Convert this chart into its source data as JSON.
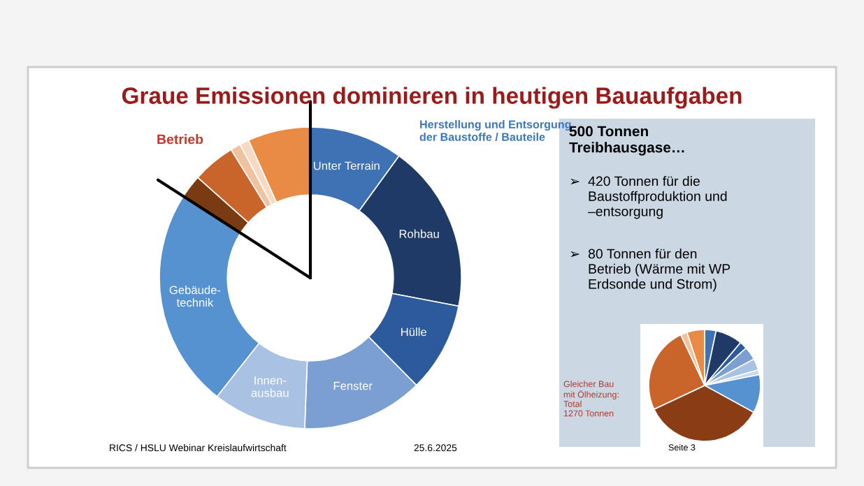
{
  "chart_data": [
    {
      "type": "donut",
      "title": "Graue Emissionen dominieren in heutigen Bauaufgaben",
      "categories": [
        "Unter Terrain",
        "Rohbau",
        "Hülle",
        "Fenster",
        "Innen-\nausbau",
        "Gebäude-\ntechnik",
        null,
        null,
        null,
        null,
        null
      ],
      "values": [
        10,
        18,
        9.6,
        13,
        10,
        23.5,
        2.5,
        4.6,
        1.1,
        1,
        6.7
      ],
      "colors": [
        "#3f72b5",
        "#1f3a66",
        "#2d5a9c",
        "#7a9fd0",
        "#a9c1e2",
        "#5592cf",
        "#7a3a12",
        "#c9642a",
        "#f0c3a0",
        "#f7d9c4",
        "#e98a45"
      ],
      "annotations": [
        "Betrieb",
        "Herstellung und Entsorgung\nder Baustoffe / Bauteile",
        "500 Tonnen\nTreibhausgase…",
        "➢  420 Tonnen für die\n     Baustoffproduktion und\n     –entsorgung",
        "➢  80 Tonnen für den\n     Betrieb (Wärme mit WP\n     Erdsonde und Strom)",
        "RICS / HSLU Webinar Kreislaufwirtschaft",
        "25.6.2025",
        "Seite 3"
      ]
    },
    {
      "type": "pie",
      "categories": [
        null,
        null,
        null,
        null,
        null,
        null,
        null,
        null,
        null,
        null,
        null
      ],
      "values": [
        3.3,
        7.8,
        2.2,
        3.9,
        3.3,
        1.4,
        11.1,
        35,
        25,
        1.9,
        5.1
      ],
      "colors": [
        "#3f72b5",
        "#1f3a66",
        "#2d5a9c",
        "#7a9fd0",
        "#a9c1e2",
        "#c9d8ee",
        "#5592cf",
        "#8a3d14",
        "#c9642a",
        "#f0c3a0",
        "#e98a45"
      ],
      "annotations": [
        "Gleicher Bau\nmit Ölheizung:\nTotal\n1270 Tonnen"
      ]
    }
  ]
}
